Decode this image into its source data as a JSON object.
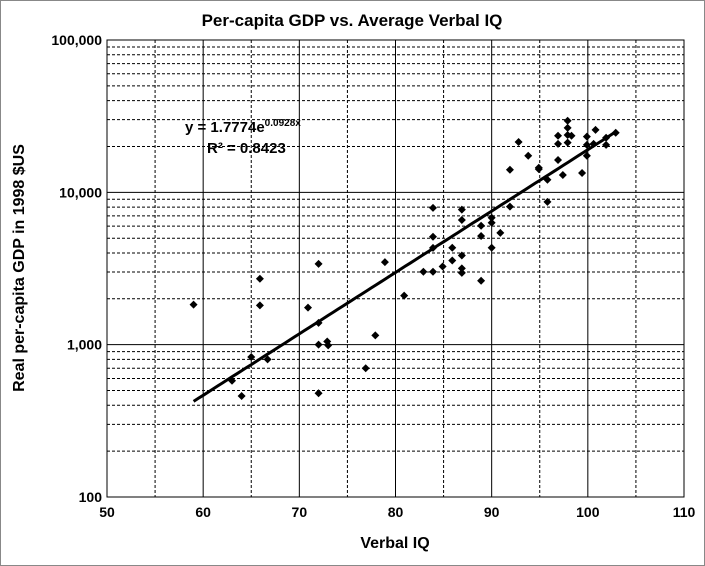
{
  "chart_data": {
    "type": "scatter",
    "title": "Per-capita GDP vs. Average Verbal IQ",
    "xlabel": "Verbal IQ",
    "ylabel": "Real per-capita GDP in 1998 $US",
    "xlim": [
      50,
      110
    ],
    "ylim": [
      100,
      100000
    ],
    "yscale": "log",
    "grid": true,
    "x_ticks": [
      "50",
      "60",
      "70",
      "80",
      "90",
      "100",
      "110"
    ],
    "y_ticks": [
      "100",
      "1,000",
      "10,000",
      "100,000"
    ],
    "points": [
      [
        59,
        1830
      ],
      [
        65.9,
        2710
      ],
      [
        65.9,
        1810
      ],
      [
        72,
        3390
      ],
      [
        70.9,
        1750
      ],
      [
        72,
        1390
      ],
      [
        65,
        830
      ],
      [
        66.7,
        800
      ],
      [
        63,
        580
      ],
      [
        64,
        460
      ],
      [
        72,
        1000
      ],
      [
        72.9,
        1050
      ],
      [
        73,
        990
      ],
      [
        72,
        480
      ],
      [
        76.9,
        700
      ],
      [
        77.9,
        1150
      ],
      [
        78.9,
        3480
      ],
      [
        80.9,
        2100
      ],
      [
        82.9,
        3010
      ],
      [
        83.9,
        3010
      ],
      [
        83.9,
        7910
      ],
      [
        83.9,
        5110
      ],
      [
        83.9,
        4320
      ],
      [
        84.9,
        3260
      ],
      [
        85.9,
        4330
      ],
      [
        85.9,
        3570
      ],
      [
        86.9,
        7700
      ],
      [
        86.9,
        6580
      ],
      [
        86.9,
        3850
      ],
      [
        86.9,
        3170
      ],
      [
        86.9,
        2960
      ],
      [
        88.9,
        6030
      ],
      [
        88.9,
        5170
      ],
      [
        88.9,
        2630
      ],
      [
        90,
        6810
      ],
      [
        90,
        6320
      ],
      [
        90,
        4330
      ],
      [
        90.9,
        5420
      ],
      [
        91.9,
        8060
      ],
      [
        91.9,
        14060
      ],
      [
        92.8,
        21400
      ],
      [
        93.8,
        17400
      ],
      [
        94.9,
        14500
      ],
      [
        94.9,
        14200
      ],
      [
        95.8,
        12100
      ],
      [
        95.8,
        8660
      ],
      [
        96.9,
        23500
      ],
      [
        96.9,
        20800
      ],
      [
        96.9,
        16300
      ],
      [
        97.4,
        13000
      ],
      [
        97.9,
        29500
      ],
      [
        97.9,
        26500
      ],
      [
        97.9,
        23800
      ],
      [
        98.3,
        23500
      ],
      [
        97.9,
        21200
      ],
      [
        99.4,
        13400
      ],
      [
        99.9,
        23200
      ],
      [
        99.9,
        20500
      ],
      [
        99.9,
        17400
      ],
      [
        100.8,
        25700
      ],
      [
        100.6,
        20800
      ],
      [
        101.9,
        22800
      ],
      [
        101.9,
        20500
      ],
      [
        102.9,
        24600
      ]
    ],
    "trendline": {
      "type": "exponential",
      "a": 1.7774,
      "b": 0.0928,
      "x_range": [
        59,
        103
      ]
    },
    "annotations": {
      "equation_base": "y = 1.7774e",
      "equation_exp": "0.0928x",
      "r2": "R² = 0.8423"
    },
    "colors": {
      "points": "#000000",
      "trendline": "#000000",
      "grid": "#000000"
    }
  }
}
